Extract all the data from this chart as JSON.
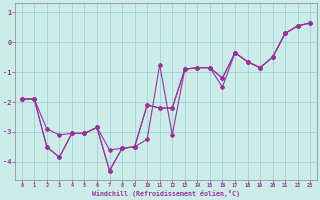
{
  "xlabel": "Windchill (Refroidissement éolien,°C)",
  "bg_color": "#ccecea",
  "line_color": "#993399",
  "grid_color": "#99cccc",
  "series1_x": [
    0,
    1,
    2,
    3,
    4,
    5,
    6,
    7,
    8,
    9,
    10,
    11,
    12,
    13,
    14,
    15,
    16,
    17,
    18,
    19,
    20,
    21,
    22,
    23
  ],
  "series1_y": [
    -1.9,
    -1.9,
    -3.5,
    -3.85,
    -3.05,
    -3.05,
    -2.85,
    -4.3,
    -3.55,
    -3.5,
    -3.25,
    -0.75,
    -3.1,
    -0.9,
    -0.85,
    -0.85,
    -1.5,
    -0.35,
    -0.65,
    -0.85,
    -0.5,
    0.3,
    0.55,
    0.65
  ],
  "series2_x": [
    0,
    1,
    2,
    3,
    4,
    5,
    6,
    7,
    8,
    9,
    10,
    11,
    12,
    13,
    14,
    15,
    16,
    17,
    18,
    19,
    20,
    21,
    22,
    23
  ],
  "series2_y": [
    -1.9,
    -1.9,
    -3.5,
    -3.85,
    -3.05,
    -3.05,
    -2.85,
    -4.3,
    -3.55,
    -3.5,
    -2.1,
    -2.2,
    -2.2,
    -0.9,
    -0.85,
    -0.85,
    -1.2,
    -0.35,
    -0.65,
    -0.85,
    -0.5,
    0.3,
    0.55,
    0.65
  ],
  "series3_x": [
    0,
    1,
    2,
    3,
    4,
    5,
    6,
    7,
    8,
    9,
    10,
    11,
    12,
    13,
    14,
    15,
    16,
    17,
    18,
    19,
    20,
    21,
    22,
    23
  ],
  "series3_y": [
    -1.9,
    -1.9,
    -2.9,
    -3.1,
    -3.05,
    -3.05,
    -2.85,
    -3.6,
    -3.55,
    -3.5,
    -2.1,
    -2.2,
    -2.2,
    -0.9,
    -0.85,
    -0.85,
    -1.2,
    -0.35,
    -0.65,
    -0.85,
    -0.5,
    0.3,
    0.55,
    0.65
  ],
  "ylim": [
    -4.6,
    1.3
  ],
  "xlim": [
    -0.5,
    23.5
  ],
  "yticks": [
    1,
    0,
    -1,
    -2,
    -3,
    -4
  ],
  "xticks": [
    0,
    1,
    2,
    3,
    4,
    5,
    6,
    7,
    8,
    9,
    10,
    11,
    12,
    13,
    14,
    15,
    16,
    17,
    18,
    19,
    20,
    21,
    22,
    23
  ]
}
